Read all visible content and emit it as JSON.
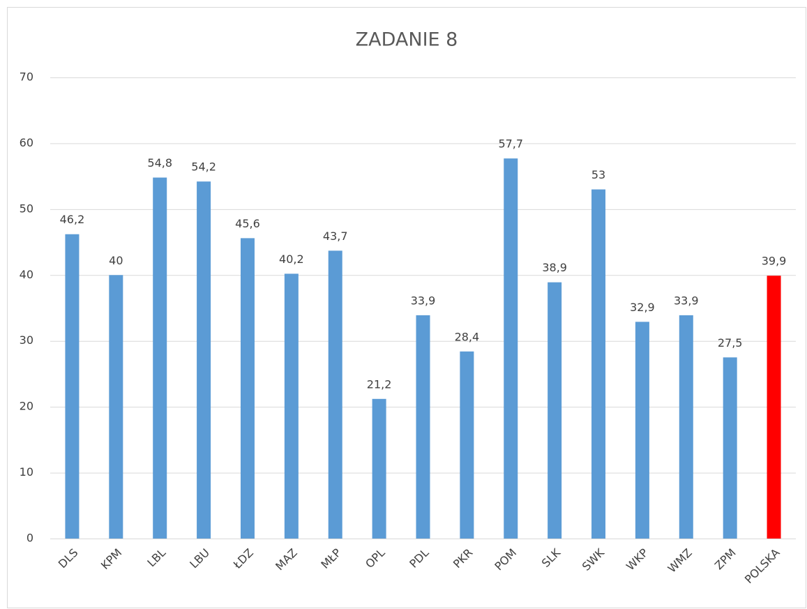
{
  "chart_data": {
    "type": "bar",
    "title": "ZADANIE 8",
    "categories": [
      "DLS",
      "KPM",
      "LBL",
      "LBU",
      "ŁDZ",
      "MAZ",
      "MŁP",
      "OPL",
      "PDL",
      "PKR",
      "POM",
      "SLK",
      "SWK",
      "WKP",
      "WMZ",
      "ZPM",
      "POLSKA"
    ],
    "values": [
      46.2,
      40,
      54.8,
      54.2,
      45.6,
      40.2,
      43.7,
      21.2,
      33.9,
      28.4,
      57.7,
      38.9,
      53,
      32.9,
      33.9,
      27.5,
      39.9
    ],
    "value_labels": [
      "46,2",
      "40",
      "54,8",
      "54,2",
      "45,6",
      "40,2",
      "43,7",
      "21,2",
      "33,9",
      "28,4",
      "57,7",
      "38,9",
      "53",
      "32,9",
      "33,9",
      "27,5",
      "39,9"
    ],
    "colors": [
      "#5b9bd5",
      "#5b9bd5",
      "#5b9bd5",
      "#5b9bd5",
      "#5b9bd5",
      "#5b9bd5",
      "#5b9bd5",
      "#5b9bd5",
      "#5b9bd5",
      "#5b9bd5",
      "#5b9bd5",
      "#5b9bd5",
      "#5b9bd5",
      "#5b9bd5",
      "#5b9bd5",
      "#5b9bd5",
      "#ff0000"
    ],
    "ylim": [
      0,
      70
    ],
    "yticks": [
      0,
      10,
      20,
      30,
      40,
      50,
      60,
      70
    ],
    "grid": true
  }
}
